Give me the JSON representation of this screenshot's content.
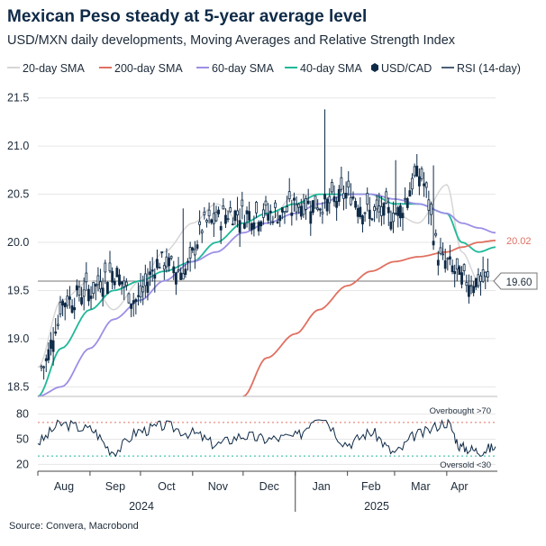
{
  "title": "Mexican Peso steady at 5-year average level",
  "subtitle": "USD/MXN daily developments, Moving Averages and Relative Strength Index",
  "source": "Source: Convera, Macrobond",
  "chart_data": [
    {
      "type": "line",
      "panel": "price",
      "title": "Mexican Peso steady at 5-year average level",
      "ylim": [
        18.4,
        21.6
      ],
      "yticks": [
        "21.5",
        "21.0",
        "20.5",
        "20.0",
        "19.5",
        "19.0",
        "18.5"
      ],
      "legend_position": "top",
      "legend": [
        "20-day SMA",
        "200-day SMA",
        "60-day SMA",
        "40-day SMA",
        "USD/CAD",
        "RSI (14-day)"
      ],
      "value_labels": [
        {
          "series": "200-day SMA",
          "value": 20.02,
          "text": "20.02"
        },
        {
          "series": "USD/CAD",
          "value": 19.6,
          "text": "19.60"
        }
      ],
      "reference_line": 19.6,
      "x": [
        "2024-08-01",
        "2024-08-15",
        "2024-09-01",
        "2024-09-15",
        "2024-10-01",
        "2024-10-15",
        "2024-11-01",
        "2024-11-15",
        "2024-12-01",
        "2024-12-15",
        "2025-01-01",
        "2025-01-15",
        "2025-02-01",
        "2025-02-15",
        "2025-03-01",
        "2025-03-15",
        "2025-04-01",
        "2025-04-10",
        "2025-04-20",
        "2025-04-30"
      ],
      "series": [
        {
          "name": "USD/CAD",
          "type": "candlestick",
          "color": "#0e2a47",
          "values": [
            18.7,
            19.4,
            19.5,
            19.7,
            19.4,
            19.8,
            19.7,
            20.2,
            20.3,
            20.3,
            20.3,
            20.4,
            20.4,
            20.5,
            20.3,
            20.3,
            20.7,
            19.8,
            19.6,
            19.6
          ]
        },
        {
          "name": "20-day SMA",
          "color": "#d6d6d6",
          "values": [
            18.7,
            19.4,
            19.6,
            19.3,
            19.6,
            19.9,
            20.2,
            20.4,
            20.2,
            20.2,
            20.5,
            20.5,
            20.5,
            20.5,
            20.3,
            20.2,
            20.6,
            19.9,
            19.6,
            19.6
          ]
        },
        {
          "name": "40-day SMA",
          "color": "#1fb89a",
          "values": [
            18.4,
            18.9,
            19.3,
            19.5,
            19.6,
            19.7,
            19.8,
            20.0,
            20.2,
            20.3,
            20.4,
            20.5,
            20.5,
            20.5,
            20.4,
            20.4,
            20.3,
            20.0,
            19.9,
            19.95
          ]
        },
        {
          "name": "60-day SMA",
          "color": "#9b8fe6",
          "values": [
            18.4,
            18.5,
            18.9,
            19.2,
            19.4,
            19.6,
            19.8,
            19.9,
            20.1,
            20.2,
            20.3,
            20.4,
            20.5,
            20.5,
            20.45,
            20.4,
            20.3,
            20.2,
            20.15,
            20.1
          ]
        },
        {
          "name": "200-day SMA",
          "color": "#e07060",
          "values": [
            null,
            null,
            null,
            null,
            null,
            null,
            null,
            null,
            18.4,
            18.8,
            19.05,
            19.3,
            19.55,
            19.7,
            19.8,
            19.85,
            19.9,
            19.95,
            20.0,
            20.02
          ]
        }
      ]
    },
    {
      "type": "line",
      "panel": "rsi",
      "ylim": [
        15,
        85
      ],
      "yticks": [
        "80",
        "50",
        "20"
      ],
      "annotations": [
        "Overbought >70",
        "Oversold <30"
      ],
      "thresholds": [
        70,
        30
      ],
      "xticks": [
        "Aug",
        "Sep",
        "Oct",
        "Nov",
        "Dec",
        "Jan",
        "Feb",
        "Mar",
        "Apr"
      ],
      "year_labels": [
        "2024",
        "2025"
      ],
      "series": [
        {
          "name": "RSI (14-day)",
          "color": "#0e2a47",
          "values": [
            47,
            68,
            62,
            36,
            60,
            66,
            57,
            44,
            54,
            50,
            53,
            79,
            45,
            58,
            34,
            56,
            70,
            40,
            36,
            40
          ]
        }
      ]
    }
  ],
  "colors": {
    "title": "#0e2a47",
    "price": "#0e2a47",
    "sma20": "#d6d6d6",
    "sma200": "#e07060",
    "sma60": "#9b8fe6",
    "sma40": "#1fb89a",
    "overbought": "#e07060",
    "oversold": "#1fb89a",
    "grid": "#e6e6e6"
  }
}
